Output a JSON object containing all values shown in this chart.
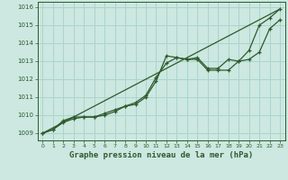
{
  "xlabel": "Graphe pression niveau de la mer (hPa)",
  "bg_color": "#cce8e0",
  "grid_color": "#aad4cc",
  "line_color": "#2d5a2d",
  "xlim": [
    -0.5,
    23.5
  ],
  "ylim": [
    1008.6,
    1016.3
  ],
  "yticks": [
    1009,
    1010,
    1011,
    1012,
    1013,
    1014,
    1015,
    1016
  ],
  "xticks": [
    0,
    1,
    2,
    3,
    4,
    5,
    6,
    7,
    8,
    9,
    10,
    11,
    12,
    13,
    14,
    15,
    16,
    17,
    18,
    19,
    20,
    21,
    22,
    23
  ],
  "line1_x": [
    0,
    1,
    2,
    3,
    4,
    5,
    6,
    7,
    8,
    9,
    10,
    11,
    12,
    13,
    14,
    15,
    16,
    17,
    18,
    19,
    20,
    21,
    22,
    23
  ],
  "line1_y": [
    1009.0,
    1009.2,
    1009.7,
    1009.9,
    1009.9,
    1009.9,
    1010.1,
    1010.3,
    1010.5,
    1010.6,
    1011.0,
    1011.9,
    1013.3,
    1013.2,
    1013.1,
    1013.1,
    1012.5,
    1012.5,
    1012.5,
    1013.0,
    1013.1,
    1013.5,
    1014.8,
    1015.3
  ],
  "line2_x": [
    0,
    1,
    2,
    3,
    4,
    5,
    6,
    7,
    8,
    9,
    10,
    11,
    12,
    13,
    14,
    15,
    16,
    17,
    18,
    19,
    20,
    21,
    22,
    23
  ],
  "line2_y": [
    1009.0,
    1009.2,
    1009.6,
    1009.8,
    1009.9,
    1009.9,
    1010.0,
    1010.2,
    1010.5,
    1010.7,
    1011.1,
    1012.1,
    1012.9,
    1013.2,
    1013.1,
    1013.2,
    1012.6,
    1012.6,
    1013.1,
    1013.0,
    1013.6,
    1015.0,
    1015.4,
    1015.9
  ],
  "line3_x": [
    0,
    23
  ],
  "line3_y": [
    1009.0,
    1015.9
  ]
}
